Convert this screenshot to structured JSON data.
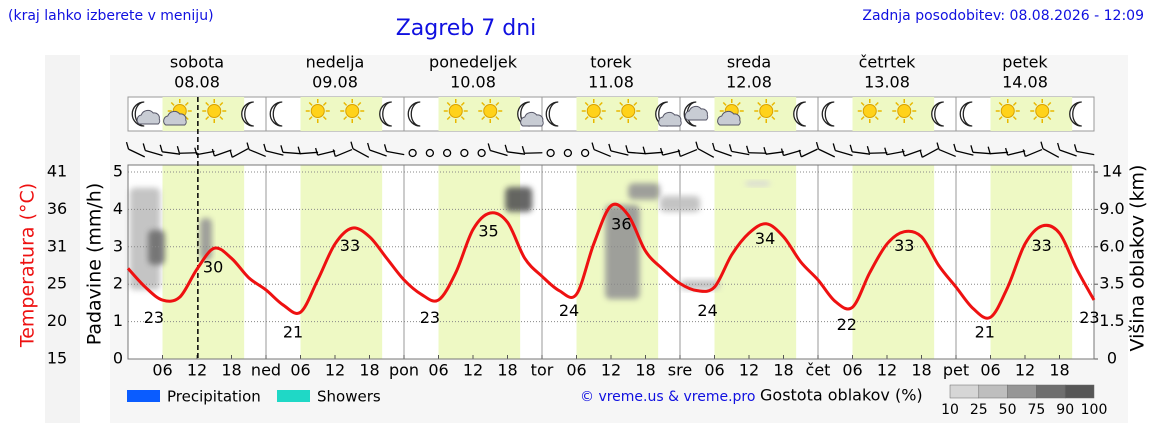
{
  "chart_data": {
    "type": "meteogram",
    "title": "Zagreb 7 dni",
    "subtitle": "(kraj lahko izberete v meniju)",
    "updated": "Zadnja posodobitev: 08.08.2026 - 12:09",
    "days": [
      {
        "name": "sobota",
        "date": "08.08",
        "color": "#e00000"
      },
      {
        "name": "nedelja",
        "date": "09.08",
        "color": "#e00000"
      },
      {
        "name": "ponedeljek",
        "date": "10.08",
        "color": "#000000"
      },
      {
        "name": "torek",
        "date": "11.08",
        "color": "#000000"
      },
      {
        "name": "sreda",
        "date": "12.08",
        "color": "#000000"
      },
      {
        "name": "četrtek",
        "date": "13.08",
        "color": "#000000"
      },
      {
        "name": "petek",
        "date": "14.08",
        "color": "#000000"
      }
    ],
    "xlim": [
      0,
      168
    ],
    "xticks": [
      {
        "value": 6,
        "label": "06"
      },
      12,
      18,
      {
        "value": 24,
        "label": "ned"
      },
      {
        "value": 30,
        "label": "06"
      },
      {
        "value": 36,
        "label": "12"
      },
      {
        "value": 42,
        "label": "18"
      },
      {
        "value": 48,
        "label": "pon"
      },
      {
        "value": 54,
        "label": "06"
      },
      {
        "value": 60,
        "label": "12"
      },
      {
        "value": 66,
        "label": "18"
      },
      {
        "value": 72,
        "label": "tor"
      },
      {
        "value": 78,
        "label": "06"
      },
      {
        "value": 84,
        "label": "12"
      },
      {
        "value": 90,
        "label": "18"
      },
      {
        "value": 96,
        "label": "sre"
      },
      {
        "value": 102,
        "label": "06"
      },
      {
        "value": 108,
        "label": "12"
      },
      {
        "value": 114,
        "label": "18"
      },
      {
        "value": 120,
        "label": "čet"
      },
      {
        "value": 126,
        "label": "06"
      },
      {
        "value": 132,
        "label": "12"
      },
      {
        "value": 138,
        "label": "18"
      },
      {
        "value": 144,
        "label": "pet"
      },
      {
        "value": 150,
        "label": "06"
      },
      {
        "value": 156,
        "label": "12"
      },
      {
        "value": 162,
        "label": "18"
      }
    ],
    "ylabel": "Padavine (mm/h)",
    "ylim": [
      0,
      5
    ],
    "yticks": [
      0,
      1,
      2,
      3,
      4,
      5
    ],
    "y2label": "Temperatura (°C)",
    "y2lim": [
      15,
      41
    ],
    "y2ticks": [
      15,
      {
        "value": 20.2,
        "label": "20"
      },
      {
        "value": 25.4,
        "label": "25"
      },
      {
        "value": 30.6,
        "label": "31"
      },
      {
        "value": 35.8,
        "label": "36"
      },
      41
    ],
    "y3label": "Višina oblakov (km)",
    "y3ticks": [
      0,
      1.5,
      3.5,
      {
        "value": 6,
        "label": "6.0"
      },
      {
        "value": 9,
        "label": "9.0"
      },
      14
    ],
    "grid": true,
    "now": 12.15,
    "temperature": {
      "color": "#ee1111",
      "axis": "y2",
      "x": [
        0,
        3,
        6,
        9,
        12,
        15,
        18,
        21,
        24,
        27,
        30,
        33,
        36,
        39,
        42,
        45,
        48,
        51,
        54,
        57,
        60,
        63,
        66,
        69,
        72,
        75,
        78,
        81,
        84,
        87,
        90,
        93,
        96,
        99,
        102,
        105,
        108,
        111,
        114,
        117,
        120,
        123,
        126,
        129,
        132,
        135,
        138,
        141,
        144,
        147,
        150,
        153,
        156,
        159,
        162,
        165,
        168
      ],
      "values": [
        27.6,
        25,
        23.2,
        23.6,
        27.5,
        30.4,
        29,
        26.3,
        24.6,
        22.5,
        21.5,
        26,
        31,
        33.2,
        32,
        29,
        26,
        24,
        23.2,
        27,
        33,
        35.3,
        34,
        29,
        26.5,
        24.5,
        24,
        31,
        36.3,
        35,
        30,
        27.5,
        25.5,
        24.5,
        25,
        29.5,
        32.5,
        33.8,
        32,
        28.5,
        26,
        23,
        22.2,
        27,
        31,
        32.7,
        32,
        28,
        25,
        22,
        20.8,
        25,
        31,
        33.5,
        32.5,
        27.5,
        23.2
      ]
    },
    "temp_labels": [
      {
        "x": 4.5,
        "value": 23
      },
      {
        "x": 14.8,
        "value": 30
      },
      {
        "x": 28.7,
        "value": 21
      },
      {
        "x": 38.6,
        "value": 33
      },
      {
        "x": 52.5,
        "value": 23
      },
      {
        "x": 62.7,
        "value": 35
      },
      {
        "x": 76.7,
        "value": 24
      },
      {
        "x": 85.8,
        "value": 36
      },
      {
        "x": 100.8,
        "value": 24
      },
      {
        "x": 110.8,
        "value": 34
      },
      {
        "x": 125,
        "value": 22
      },
      {
        "x": 135,
        "value": 33
      },
      {
        "x": 149,
        "value": 21
      },
      {
        "x": 158.9,
        "value": 33
      },
      {
        "x": 167.2,
        "value": 23
      }
    ],
    "clouds": [
      {
        "x": [
          0.3,
          5.6
        ],
        "km": [
          3.2,
          11.9
        ],
        "density": 25
      },
      {
        "x": [
          3.5,
          6.4
        ],
        "km": [
          4.8,
          7.35
        ],
        "density": 75
      },
      {
        "x": [
          12.5,
          14.6
        ],
        "km": [
          5.1,
          8.3
        ],
        "density": 50
      },
      {
        "x": [
          65.6,
          70.3
        ],
        "km": [
          8.8,
          12
        ],
        "density": 90
      },
      {
        "x": [
          87,
          92.5
        ],
        "km": [
          10.3,
          12.5
        ],
        "density": 50
      },
      {
        "x": [
          83,
          89
        ],
        "km": [
          2.7,
          9.6
        ],
        "density": 50
      },
      {
        "x": [
          92.5,
          99.5
        ],
        "km": [
          8.8,
          10.8
        ],
        "density": 25
      },
      {
        "x": [
          96,
          103
        ],
        "km": [
          3.2,
          3.8
        ],
        "density": 25
      },
      {
        "x": [
          107.3,
          111.7
        ],
        "km": [
          12.1,
          12.8
        ],
        "density": 10
      }
    ],
    "legend": [
      {
        "name": "Precipitation",
        "color": "#0a5cff"
      },
      {
        "name": "Showers",
        "color": "#1fd8c6"
      }
    ],
    "credit": "© vreme.us & vreme.pro",
    "density_label": "Gostota oblakov (%)",
    "density_ticks": [
      10,
      25,
      50,
      75,
      90,
      100
    ]
  }
}
